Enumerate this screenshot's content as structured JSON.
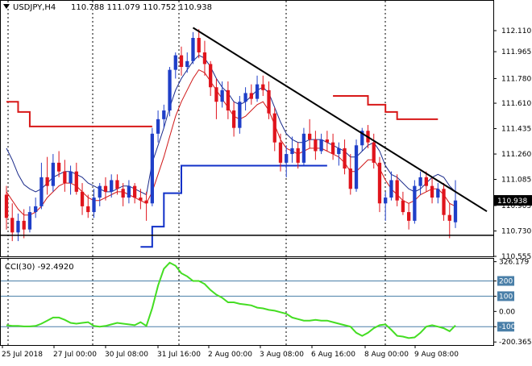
{
  "header": {
    "symbol": "USDJPY,H4",
    "ohlc": "110.788 111.079 110.752 110.938",
    "collapse_icon": "triangle-down-icon"
  },
  "colors": {
    "bull_candle": "#1f3fc8",
    "bear_candle": "#e0141c",
    "ma_fast": "#d01818",
    "ma_slow": "#1a2a8a",
    "ichimoku_red": "#d81818",
    "ichimoku_blue": "#1030c8",
    "trendline": "#000000",
    "cci_line": "#44dd22",
    "cci_level_lines": "#4a7fa8",
    "price_tag_bg": "#000000"
  },
  "chart_data": [
    {
      "type": "candlestick",
      "title": "USDJPY,H4",
      "current_price_label": "110.938",
      "ylim": [
        110.555,
        112.21
      ],
      "y_ticks": [
        "112.110",
        "111.965",
        "111.780",
        "111.610",
        "111.435",
        "111.260",
        "111.085",
        "110.905",
        "110.730",
        "110.555"
      ],
      "x_ticks": [
        "25 Jul 2018",
        "27 Jul 00:00",
        "30 Jul 08:00",
        "31 Jul 16:00",
        "2 Aug 00:00",
        "3 Aug 08:00",
        "6 Aug 16:00",
        "8 Aug 00:00",
        "9 Aug 08:00"
      ],
      "candles": [
        [
          110.98,
          111.04,
          110.74,
          110.82
        ],
        [
          110.82,
          110.92,
          110.66,
          110.72
        ],
        [
          110.72,
          110.85,
          110.66,
          110.8
        ],
        [
          110.8,
          110.88,
          110.68,
          110.74
        ],
        [
          110.74,
          110.9,
          110.72,
          110.86
        ],
        [
          110.86,
          110.96,
          110.82,
          110.9
        ],
        [
          110.9,
          111.2,
          110.88,
          111.1
        ],
        [
          111.1,
          111.24,
          110.98,
          111.04
        ],
        [
          111.04,
          111.26,
          111.0,
          111.2
        ],
        [
          111.2,
          111.28,
          111.1,
          111.14
        ],
        [
          111.14,
          111.22,
          111.0,
          111.06
        ],
        [
          111.06,
          111.18,
          110.98,
          111.14
        ],
        [
          111.14,
          111.2,
          110.98,
          111.0
        ],
        [
          111.0,
          111.06,
          110.84,
          110.9
        ],
        [
          110.9,
          110.98,
          110.82,
          110.86
        ],
        [
          110.86,
          111.02,
          110.82,
          110.96
        ],
        [
          110.96,
          111.06,
          110.9,
          111.04
        ],
        [
          111.04,
          111.1,
          110.94,
          111.0
        ],
        [
          111.0,
          111.12,
          110.96,
          111.08
        ],
        [
          111.08,
          111.12,
          110.98,
          111.02
        ],
        [
          111.02,
          111.06,
          110.9,
          110.96
        ],
        [
          110.96,
          111.08,
          110.92,
          111.04
        ],
        [
          111.04,
          111.06,
          110.92,
          110.96
        ],
        [
          110.96,
          111.02,
          110.88,
          110.94
        ],
        [
          110.94,
          111.0,
          110.8,
          110.92
        ],
        [
          110.92,
          111.44,
          110.9,
          111.4
        ],
        [
          111.4,
          111.56,
          111.34,
          111.5
        ],
        [
          111.5,
          111.6,
          111.44,
          111.56
        ],
        [
          111.56,
          111.86,
          111.52,
          111.84
        ],
        [
          111.84,
          111.96,
          111.78,
          111.94
        ],
        [
          111.94,
          112.0,
          111.8,
          111.86
        ],
        [
          111.86,
          111.96,
          111.82,
          111.9
        ],
        [
          111.9,
          112.1,
          111.88,
          112.06
        ],
        [
          112.06,
          112.12,
          111.92,
          111.96
        ],
        [
          111.96,
          112.04,
          111.8,
          111.88
        ],
        [
          111.88,
          111.9,
          111.66,
          111.72
        ],
        [
          111.72,
          111.78,
          111.5,
          111.62
        ],
        [
          111.62,
          111.76,
          111.58,
          111.7
        ],
        [
          111.7,
          111.76,
          111.5,
          111.56
        ],
        [
          111.56,
          111.62,
          111.38,
          111.44
        ],
        [
          111.44,
          111.66,
          111.4,
          111.62
        ],
        [
          111.62,
          111.72,
          111.56,
          111.68
        ],
        [
          111.68,
          111.74,
          111.6,
          111.64
        ],
        [
          111.64,
          111.8,
          111.62,
          111.74
        ],
        [
          111.74,
          111.8,
          111.66,
          111.7
        ],
        [
          111.7,
          111.76,
          111.5,
          111.54
        ],
        [
          111.54,
          111.58,
          111.28,
          111.34
        ],
        [
          111.34,
          111.4,
          111.14,
          111.2
        ],
        [
          111.2,
          111.32,
          111.1,
          111.26
        ],
        [
          111.26,
          111.38,
          111.2,
          111.3
        ],
        [
          111.3,
          111.34,
          111.16,
          111.2
        ],
        [
          111.2,
          111.44,
          111.18,
          111.4
        ],
        [
          111.4,
          111.5,
          111.3,
          111.36
        ],
        [
          111.36,
          111.42,
          111.22,
          111.28
        ],
        [
          111.28,
          111.4,
          111.26,
          111.36
        ],
        [
          111.36,
          111.42,
          111.28,
          111.34
        ],
        [
          111.34,
          111.4,
          111.22,
          111.26
        ],
        [
          111.26,
          111.34,
          111.18,
          111.3
        ],
        [
          111.3,
          111.36,
          111.12,
          111.16
        ],
        [
          111.16,
          111.26,
          110.98,
          111.02
        ],
        [
          111.02,
          111.36,
          111.0,
          111.32
        ],
        [
          111.32,
          111.44,
          111.28,
          111.42
        ],
        [
          111.42,
          111.46,
          111.3,
          111.34
        ],
        [
          111.34,
          111.4,
          111.16,
          111.2
        ],
        [
          111.2,
          111.24,
          110.86,
          110.92
        ],
        [
          110.92,
          111.0,
          110.8,
          110.96
        ],
        [
          110.96,
          111.14,
          110.94,
          111.08
        ],
        [
          111.08,
          111.12,
          110.9,
          110.94
        ],
        [
          110.94,
          111.0,
          110.84,
          110.86
        ],
        [
          110.86,
          110.92,
          110.74,
          110.8
        ],
        [
          110.8,
          111.08,
          110.78,
          111.04
        ],
        [
          111.04,
          111.14,
          110.98,
          111.1
        ],
        [
          111.1,
          111.14,
          111.0,
          111.04
        ],
        [
          111.04,
          111.1,
          110.92,
          110.96
        ],
        [
          110.96,
          111.06,
          110.92,
          111.02
        ],
        [
          111.02,
          111.06,
          110.8,
          110.84
        ],
        [
          110.84,
          110.92,
          110.68,
          110.8
        ],
        [
          110.79,
          111.08,
          110.75,
          110.94
        ]
      ],
      "series": [
        {
          "name": "",
          "color": "#1a2a8a",
          "values": [
            111.3,
            111.22,
            111.12,
            111.05,
            111.02,
            111.0,
            111.02,
            111.06,
            111.1,
            111.12,
            111.14,
            111.14,
            111.12,
            111.1,
            111.06,
            111.04,
            111.02,
            111.0,
            111.0,
            111.02,
            111.04,
            111.04,
            111.02,
            111.0,
            110.98,
            111.2,
            111.32,
            111.44,
            111.58,
            111.7,
            111.78,
            111.84,
            111.9,
            111.94,
            111.92,
            111.86,
            111.78,
            111.72,
            111.68,
            111.62,
            111.6,
            111.62,
            111.66,
            111.7,
            111.72,
            111.68,
            111.58,
            111.48,
            111.4,
            111.36,
            111.34,
            111.34,
            111.36,
            111.36,
            111.36,
            111.34,
            111.32,
            111.3,
            111.28,
            111.24,
            111.24,
            111.28,
            111.32,
            111.34,
            111.28,
            111.18,
            111.12,
            111.1,
            111.06,
            111.02,
            111.0,
            111.02,
            111.06,
            111.1,
            111.12,
            111.1,
            111.04,
            111.0
          ]
        },
        {
          "name": "",
          "color": "#d01818",
          "values": [
            111.0,
            110.94,
            110.88,
            110.84,
            110.84,
            110.86,
            110.9,
            110.96,
            111.0,
            111.04,
            111.06,
            111.06,
            111.04,
            111.0,
            110.96,
            110.94,
            110.94,
            110.96,
            110.98,
            111.0,
            111.0,
            110.98,
            110.96,
            110.94,
            110.92,
            111.0,
            111.12,
            111.24,
            111.38,
            111.52,
            111.62,
            111.7,
            111.78,
            111.84,
            111.82,
            111.76,
            111.7,
            111.64,
            111.58,
            111.52,
            111.5,
            111.52,
            111.56,
            111.6,
            111.62,
            111.56,
            111.46,
            111.36,
            111.3,
            111.28,
            111.26,
            111.28,
            111.3,
            111.3,
            111.3,
            111.28,
            111.26,
            111.24,
            111.2,
            111.14,
            111.14,
            111.18,
            111.22,
            111.22,
            111.16,
            111.08,
            111.02,
            110.98,
            110.94,
            110.92,
            110.94,
            110.98,
            111.0,
            111.02,
            111.02,
            110.98,
            110.92,
            110.9
          ]
        }
      ],
      "ichimoku_red_steps": [
        [
          0,
          111.62
        ],
        [
          2,
          111.55
        ],
        [
          4,
          111.45
        ],
        [
          25,
          111.45
        ],
        [
          56,
          111.66
        ],
        [
          62,
          111.6
        ],
        [
          65,
          111.55
        ],
        [
          67,
          111.5
        ],
        [
          74,
          111.5
        ]
      ],
      "ichimoku_blue_steps": [
        [
          23,
          110.62
        ],
        [
          25,
          110.76
        ],
        [
          27,
          110.99
        ],
        [
          30,
          111.18
        ],
        [
          55,
          111.18
        ]
      ],
      "trendline": [
        [
          32,
          112.13
        ],
        [
          79,
          110.95
        ]
      ],
      "support_level": 110.7
    },
    {
      "type": "line",
      "title": "CCI(30) -92.4920",
      "ylim": [
        -215,
        340
      ],
      "y_ticks": [
        "326.179",
        "200",
        "100",
        "0.00",
        "-100",
        "-200.3654"
      ],
      "levels": [
        200,
        100,
        -100
      ],
      "values": [
        -90,
        -95,
        -95,
        -98,
        -98,
        -95,
        -80,
        -60,
        -40,
        -40,
        -55,
        -75,
        -80,
        -75,
        -70,
        -95,
        -100,
        -95,
        -85,
        -75,
        -80,
        -85,
        -90,
        -70,
        -95,
        20,
        170,
        280,
        320,
        300,
        250,
        230,
        200,
        200,
        180,
        140,
        110,
        90,
        60,
        60,
        50,
        45,
        40,
        25,
        20,
        10,
        5,
        -5,
        -15,
        -40,
        -50,
        -60,
        -60,
        -55,
        -60,
        -60,
        -70,
        -80,
        -90,
        -100,
        -140,
        -160,
        -140,
        -110,
        -90,
        -85,
        -120,
        -160,
        -165,
        -175,
        -170,
        -140,
        -100,
        -90,
        -100,
        -110,
        -130,
        -92
      ]
    }
  ]
}
